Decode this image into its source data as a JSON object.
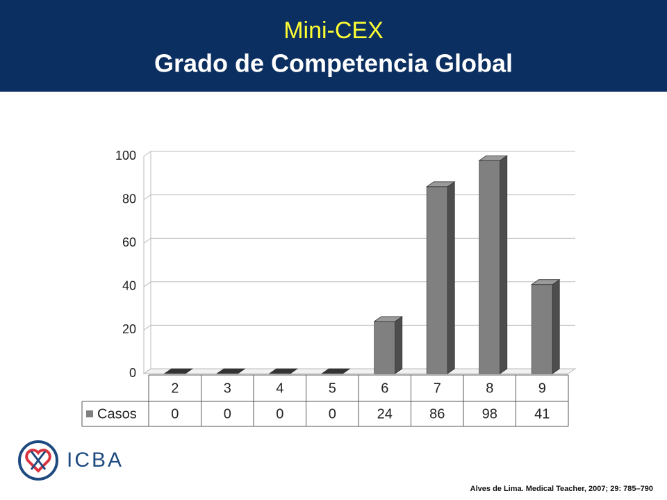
{
  "chart_data": {
    "type": "bar",
    "title": "Mini-CEX",
    "subtitle": "Grado de Competencia Global",
    "categories": [
      "2",
      "3",
      "4",
      "5",
      "6",
      "7",
      "8",
      "9"
    ],
    "series": [
      {
        "name": "Casos",
        "color": "#808080",
        "values": [
          0,
          0,
          0,
          0,
          24,
          86,
          98,
          41
        ]
      }
    ],
    "ylim": [
      0,
      100
    ],
    "yticks": [
      0,
      20,
      40,
      60,
      80,
      100
    ],
    "grid": true
  },
  "logo": "ICBA",
  "source": "Alves de Lima. Medical Teacher, 2007; 29: 785–790"
}
